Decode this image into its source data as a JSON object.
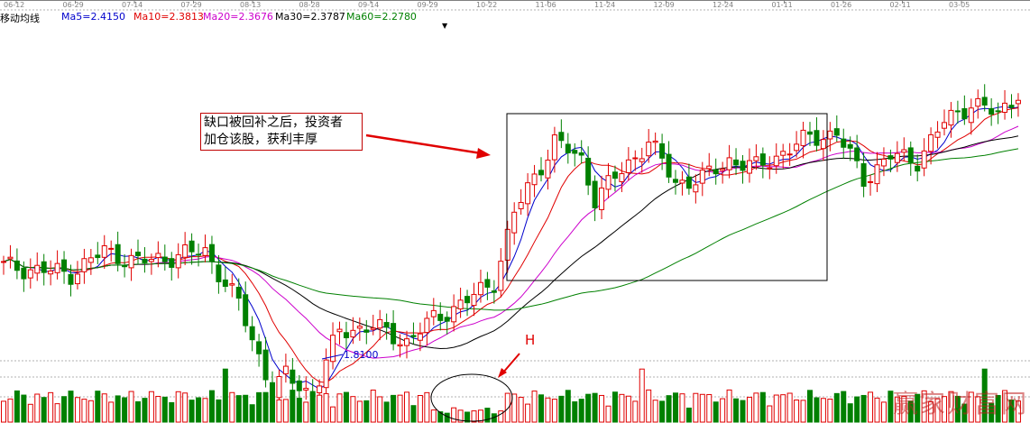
{
  "indicator": {
    "name": "移动均线",
    "ma5": {
      "label": "Ma5=2.4150",
      "color": "#0000cc"
    },
    "ma10": {
      "label": "Ma10=2.3813",
      "color": "#e00000"
    },
    "ma20": {
      "label": "Ma20=2.3676",
      "color": "#cc00cc"
    },
    "ma30": {
      "label": "Ma30=2.3787",
      "color": "#000000"
    },
    "ma60": {
      "label": "Ma60=2.2780",
      "color": "#008000"
    },
    "dropdown_glyph": "▼"
  },
  "annotation": {
    "line1": "缺口被回补之后，投资者",
    "line2": "加仓该股，获利丰厚",
    "marker": "H",
    "low_label": "1.8100"
  },
  "watermark": "赢家财富网",
  "colors": {
    "up": "#e00000",
    "down": "#008000",
    "grid": "#b0b0b0",
    "box": "#000000"
  },
  "chart_data": {
    "type": "candlestick",
    "x_ticks": [
      "06-12",
      "06-29",
      "07-14",
      "07-29",
      "08-13",
      "08-28",
      "09-14",
      "09-29",
      "10-22",
      "11-06",
      "11-24",
      "12-09",
      "12-24",
      "01-11",
      "01-26",
      "02-11",
      "03-05"
    ],
    "price_keypoints": [
      [
        0,
        2.2
      ],
      [
        10,
        2.18
      ],
      [
        15,
        2.24
      ],
      [
        20,
        2.21
      ],
      [
        30,
        2.24
      ],
      [
        35,
        2.1
      ],
      [
        40,
        1.87
      ],
      [
        42,
        1.91
      ],
      [
        46,
        1.86
      ],
      [
        50,
        2.03
      ],
      [
        55,
        2.04
      ],
      [
        60,
        2.0
      ],
      [
        64,
        2.06
      ],
      [
        70,
        2.12
      ],
      [
        73,
        2.16
      ],
      [
        76,
        2.34
      ],
      [
        82,
        2.53
      ],
      [
        86,
        2.48
      ],
      [
        88,
        2.38
      ],
      [
        92,
        2.45
      ],
      [
        96,
        2.53
      ],
      [
        100,
        2.42
      ],
      [
        104,
        2.43
      ],
      [
        108,
        2.48
      ],
      [
        112,
        2.46
      ],
      [
        116,
        2.5
      ],
      [
        120,
        2.54
      ],
      [
        124,
        2.55
      ],
      [
        128,
        2.43
      ],
      [
        132,
        2.49
      ],
      [
        136,
        2.48
      ],
      [
        140,
        2.58
      ],
      [
        144,
        2.63
      ],
      [
        148,
        2.6
      ],
      [
        151,
        2.66
      ]
    ],
    "moving_averages": {
      "MA5": 2.415,
      "MA10": 2.3813,
      "MA20": 2.3676,
      "MA30": 2.3787,
      "MA60": 2.278
    },
    "price_low": 1.81,
    "volume_surge_day": 95
  }
}
